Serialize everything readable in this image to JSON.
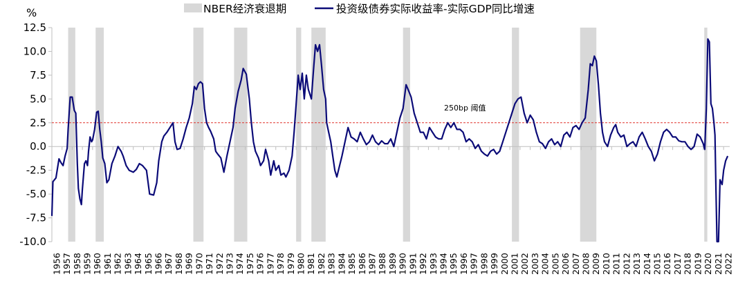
{
  "chart_data": {
    "type": "line",
    "unit_label": "%",
    "y_range": [
      -10.0,
      12.5
    ],
    "y_ticks": [
      "12.5",
      "10.0",
      "7.5",
      "5.0",
      "2.5",
      "0.0",
      "-2.5",
      "-5.0",
      "-7.5",
      "-10.0"
    ],
    "x_range": [
      1956,
      2022.6
    ],
    "x_tick_labels": [
      "1956",
      "1957",
      "1958",
      "1959",
      "1960",
      "1961",
      "1962",
      "1963",
      "1964",
      "1965",
      "1966",
      "1967",
      "1968",
      "1969",
      "1970",
      "1971",
      "1972",
      "1973",
      "1974",
      "1975",
      "1976",
      "1977",
      "1978",
      "1979",
      "1980",
      "1981",
      "1982",
      "1983",
      "1984",
      "1985",
      "1986",
      "1987",
      "1988",
      "1989",
      "1990",
      "1991",
      "1992",
      "1993",
      "1994",
      "1995",
      "1996",
      "1997",
      "1998",
      "1999",
      "2000",
      "2001",
      "2002",
      "2003",
      "2004",
      "2005",
      "2006",
      "2007",
      "2008",
      "2009",
      "2010",
      "2011",
      "2012",
      "2013",
      "2014",
      "2015",
      "2016",
      "2017",
      "2018",
      "2019",
      "2020",
      "2021",
      "2022"
    ],
    "legend": {
      "placement": "top-center",
      "recession_label": "NBER经济衰退期",
      "line_label": "投资级债券实际收益率-实际GDP同比增速"
    },
    "threshold": {
      "value": 2.5,
      "label": "250bp 阈值",
      "color": "#e0302a"
    },
    "colors": {
      "line": "#0b0b78",
      "recession": "#d8d8d8",
      "axis": "#bfbfbf"
    },
    "recessions": [
      [
        1957.6,
        1958.3
      ],
      [
        1960.3,
        1961.1
      ],
      [
        1969.9,
        1970.9
      ],
      [
        1973.9,
        1975.2
      ],
      [
        1980.0,
        1980.5
      ],
      [
        1981.5,
        1982.9
      ],
      [
        1990.5,
        1991.2
      ],
      [
        2001.2,
        2001.9
      ],
      [
        2007.9,
        2009.5
      ],
      [
        2020.1,
        2020.4
      ]
    ],
    "series": [
      {
        "name": "投资级债券实际收益率-实际GDP同比增速",
        "points": [
          [
            1956.0,
            -7.3
          ],
          [
            1956.1,
            -3.7
          ],
          [
            1956.4,
            -3.3
          ],
          [
            1956.7,
            -1.3
          ],
          [
            1956.9,
            -1.7
          ],
          [
            1957.1,
            -2.0
          ],
          [
            1957.3,
            -1.0
          ],
          [
            1957.5,
            -0.2
          ],
          [
            1957.6,
            1.8
          ],
          [
            1957.8,
            5.2
          ],
          [
            1958.0,
            5.2
          ],
          [
            1958.2,
            3.8
          ],
          [
            1958.35,
            3.5
          ],
          [
            1958.5,
            -1.8
          ],
          [
            1958.6,
            -4.4
          ],
          [
            1958.75,
            -5.5
          ],
          [
            1958.9,
            -6.1
          ],
          [
            1959.0,
            -4.5
          ],
          [
            1959.2,
            -1.8
          ],
          [
            1959.35,
            -1.5
          ],
          [
            1959.5,
            -2.0
          ],
          [
            1959.6,
            -0.5
          ],
          [
            1959.75,
            1.0
          ],
          [
            1959.9,
            0.5
          ],
          [
            1960.0,
            0.7
          ],
          [
            1960.2,
            1.8
          ],
          [
            1960.4,
            3.6
          ],
          [
            1960.55,
            3.7
          ],
          [
            1960.7,
            1.8
          ],
          [
            1960.85,
            0.5
          ],
          [
            1961.0,
            -1.2
          ],
          [
            1961.2,
            -1.8
          ],
          [
            1961.4,
            -3.8
          ],
          [
            1961.6,
            -3.5
          ],
          [
            1961.9,
            -1.8
          ],
          [
            1962.2,
            -1.0
          ],
          [
            1962.5,
            0.0
          ],
          [
            1962.8,
            -0.5
          ],
          [
            1963.0,
            -1.0
          ],
          [
            1963.3,
            -2.0
          ],
          [
            1963.6,
            -2.5
          ],
          [
            1964.0,
            -2.7
          ],
          [
            1964.3,
            -2.4
          ],
          [
            1964.6,
            -1.8
          ],
          [
            1964.9,
            -2.0
          ],
          [
            1965.3,
            -2.5
          ],
          [
            1965.6,
            -5.0
          ],
          [
            1966.0,
            -5.1
          ],
          [
            1966.3,
            -3.8
          ],
          [
            1966.5,
            -1.5
          ],
          [
            1966.8,
            0.5
          ],
          [
            1967.0,
            1.1
          ],
          [
            1967.3,
            1.5
          ],
          [
            1967.6,
            2.0
          ],
          [
            1967.9,
            2.5
          ],
          [
            1968.1,
            0.5
          ],
          [
            1968.3,
            -0.3
          ],
          [
            1968.6,
            -0.2
          ],
          [
            1968.9,
            0.8
          ],
          [
            1969.2,
            2.0
          ],
          [
            1969.5,
            3.0
          ],
          [
            1969.8,
            4.5
          ],
          [
            1970.0,
            6.3
          ],
          [
            1970.2,
            6.0
          ],
          [
            1970.4,
            6.6
          ],
          [
            1970.6,
            6.8
          ],
          [
            1970.8,
            6.6
          ],
          [
            1971.0,
            4.0
          ],
          [
            1971.2,
            2.5
          ],
          [
            1971.4,
            2.0
          ],
          [
            1971.6,
            1.6
          ],
          [
            1971.9,
            0.8
          ],
          [
            1972.1,
            -0.5
          ],
          [
            1972.3,
            -0.8
          ],
          [
            1972.6,
            -1.2
          ],
          [
            1972.9,
            -2.7
          ],
          [
            1973.2,
            -1.0
          ],
          [
            1973.5,
            0.5
          ],
          [
            1973.8,
            2.0
          ],
          [
            1974.0,
            4.0
          ],
          [
            1974.3,
            5.8
          ],
          [
            1974.6,
            7.0
          ],
          [
            1974.8,
            8.2
          ],
          [
            1975.1,
            7.6
          ],
          [
            1975.4,
            5.0
          ],
          [
            1975.6,
            2.5
          ],
          [
            1975.8,
            0.5
          ],
          [
            1976.0,
            -0.5
          ],
          [
            1976.3,
            -1.2
          ],
          [
            1976.5,
            -2.0
          ],
          [
            1976.8,
            -1.5
          ],
          [
            1977.0,
            -0.3
          ],
          [
            1977.3,
            -1.5
          ],
          [
            1977.5,
            -3.0
          ],
          [
            1977.8,
            -1.5
          ],
          [
            1978.0,
            -2.5
          ],
          [
            1978.3,
            -2.0
          ],
          [
            1978.5,
            -3.0
          ],
          [
            1978.8,
            -2.8
          ],
          [
            1979.0,
            -3.2
          ],
          [
            1979.3,
            -2.5
          ],
          [
            1979.6,
            -1.0
          ],
          [
            1979.8,
            1.5
          ],
          [
            1980.0,
            4.5
          ],
          [
            1980.2,
            7.5
          ],
          [
            1980.4,
            6.0
          ],
          [
            1980.6,
            7.7
          ],
          [
            1980.8,
            5.0
          ],
          [
            1981.0,
            7.5
          ],
          [
            1981.2,
            6.0
          ],
          [
            1981.5,
            5.0
          ],
          [
            1981.7,
            8.0
          ],
          [
            1981.9,
            10.7
          ],
          [
            1982.1,
            10.0
          ],
          [
            1982.3,
            10.7
          ],
          [
            1982.5,
            8.5
          ],
          [
            1982.7,
            6.0
          ],
          [
            1982.9,
            5.0
          ],
          [
            1983.0,
            2.5
          ],
          [
            1983.2,
            1.5
          ],
          [
            1983.4,
            0.5
          ],
          [
            1983.6,
            -1.0
          ],
          [
            1983.8,
            -2.5
          ],
          [
            1984.0,
            -3.2
          ],
          [
            1984.2,
            -2.3
          ],
          [
            1984.5,
            -1.0
          ],
          [
            1984.8,
            0.5
          ],
          [
            1985.1,
            2.0
          ],
          [
            1985.4,
            1.0
          ],
          [
            1985.7,
            0.8
          ],
          [
            1986.0,
            0.5
          ],
          [
            1986.3,
            1.5
          ],
          [
            1986.6,
            0.8
          ],
          [
            1986.9,
            0.2
          ],
          [
            1987.2,
            0.5
          ],
          [
            1987.5,
            1.2
          ],
          [
            1987.8,
            0.5
          ],
          [
            1988.1,
            0.2
          ],
          [
            1988.4,
            0.6
          ],
          [
            1988.7,
            0.3
          ],
          [
            1989.0,
            0.3
          ],
          [
            1989.3,
            0.8
          ],
          [
            1989.6,
            0.0
          ],
          [
            1989.9,
            1.5
          ],
          [
            1990.2,
            3.0
          ],
          [
            1990.5,
            4.0
          ],
          [
            1990.8,
            6.5
          ],
          [
            1991.0,
            6.0
          ],
          [
            1991.3,
            5.2
          ],
          [
            1991.6,
            3.5
          ],
          [
            1991.9,
            2.5
          ],
          [
            1992.2,
            1.5
          ],
          [
            1992.5,
            1.5
          ],
          [
            1992.8,
            0.8
          ],
          [
            1993.1,
            2.0
          ],
          [
            1993.4,
            1.5
          ],
          [
            1993.7,
            1.0
          ],
          [
            1994.0,
            0.8
          ],
          [
            1994.3,
            0.8
          ],
          [
            1994.6,
            1.8
          ],
          [
            1994.9,
            2.5
          ],
          [
            1995.2,
            2.0
          ],
          [
            1995.5,
            2.5
          ],
          [
            1995.8,
            1.8
          ],
          [
            1996.1,
            1.8
          ],
          [
            1996.4,
            1.5
          ],
          [
            1996.7,
            0.5
          ],
          [
            1997.0,
            0.8
          ],
          [
            1997.3,
            0.5
          ],
          [
            1997.6,
            -0.2
          ],
          [
            1997.9,
            0.2
          ],
          [
            1998.2,
            -0.5
          ],
          [
            1998.5,
            -0.8
          ],
          [
            1998.8,
            -1.0
          ],
          [
            1999.1,
            -0.5
          ],
          [
            1999.4,
            -0.3
          ],
          [
            1999.7,
            -0.8
          ],
          [
            2000.0,
            -0.5
          ],
          [
            2000.3,
            0.5
          ],
          [
            2000.6,
            1.5
          ],
          [
            2000.9,
            2.5
          ],
          [
            2001.2,
            3.5
          ],
          [
            2001.5,
            4.5
          ],
          [
            2001.8,
            5.0
          ],
          [
            2002.1,
            5.2
          ],
          [
            2002.4,
            3.5
          ],
          [
            2002.7,
            2.5
          ],
          [
            2003.0,
            3.3
          ],
          [
            2003.3,
            2.8
          ],
          [
            2003.6,
            1.5
          ],
          [
            2003.9,
            0.5
          ],
          [
            2004.2,
            0.3
          ],
          [
            2004.5,
            -0.2
          ],
          [
            2004.8,
            0.5
          ],
          [
            2005.1,
            0.8
          ],
          [
            2005.4,
            0.2
          ],
          [
            2005.7,
            0.5
          ],
          [
            2006.0,
            0.0
          ],
          [
            2006.3,
            1.2
          ],
          [
            2006.6,
            1.5
          ],
          [
            2006.9,
            1.0
          ],
          [
            2007.2,
            2.0
          ],
          [
            2007.5,
            2.2
          ],
          [
            2007.8,
            1.8
          ],
          [
            2008.1,
            2.5
          ],
          [
            2008.4,
            3.0
          ],
          [
            2008.7,
            6.0
          ],
          [
            2008.9,
            8.7
          ],
          [
            2009.1,
            8.5
          ],
          [
            2009.3,
            9.5
          ],
          [
            2009.5,
            9.0
          ],
          [
            2009.7,
            6.5
          ],
          [
            2009.9,
            3.5
          ],
          [
            2010.1,
            1.5
          ],
          [
            2010.3,
            0.5
          ],
          [
            2010.6,
            0.0
          ],
          [
            2010.9,
            1.2
          ],
          [
            2011.2,
            2.0
          ],
          [
            2011.4,
            2.3
          ],
          [
            2011.6,
            1.5
          ],
          [
            2011.9,
            1.0
          ],
          [
            2012.2,
            1.2
          ],
          [
            2012.5,
            0.0
          ],
          [
            2012.8,
            0.3
          ],
          [
            2013.1,
            0.5
          ],
          [
            2013.4,
            0.0
          ],
          [
            2013.7,
            1.0
          ],
          [
            2014.0,
            1.5
          ],
          [
            2014.3,
            0.8
          ],
          [
            2014.6,
            0.0
          ],
          [
            2014.9,
            -0.5
          ],
          [
            2015.2,
            -1.5
          ],
          [
            2015.5,
            -0.8
          ],
          [
            2015.8,
            0.5
          ],
          [
            2016.1,
            1.5
          ],
          [
            2016.4,
            1.8
          ],
          [
            2016.7,
            1.5
          ],
          [
            2017.0,
            1.0
          ],
          [
            2017.3,
            1.0
          ],
          [
            2017.6,
            0.6
          ],
          [
            2017.9,
            0.5
          ],
          [
            2018.2,
            0.5
          ],
          [
            2018.5,
            0.0
          ],
          [
            2018.8,
            -0.3
          ],
          [
            2019.1,
            0.0
          ],
          [
            2019.4,
            1.3
          ],
          [
            2019.7,
            1.0
          ],
          [
            2020.0,
            0.3
          ],
          [
            2020.15,
            -0.3
          ],
          [
            2020.3,
            4.0
          ],
          [
            2020.45,
            11.3
          ],
          [
            2020.6,
            11.0
          ],
          [
            2020.75,
            4.5
          ],
          [
            2020.9,
            4.0
          ],
          [
            2021.05,
            2.5
          ],
          [
            2021.15,
            1.2
          ],
          [
            2021.25,
            -4.5
          ],
          [
            2021.35,
            -10.0
          ],
          [
            2021.5,
            -10.0
          ],
          [
            2021.65,
            -3.5
          ],
          [
            2021.85,
            -4.0
          ],
          [
            2022.0,
            -2.5
          ],
          [
            2022.2,
            -1.5
          ],
          [
            2022.4,
            -1.0
          ]
        ]
      }
    ]
  }
}
